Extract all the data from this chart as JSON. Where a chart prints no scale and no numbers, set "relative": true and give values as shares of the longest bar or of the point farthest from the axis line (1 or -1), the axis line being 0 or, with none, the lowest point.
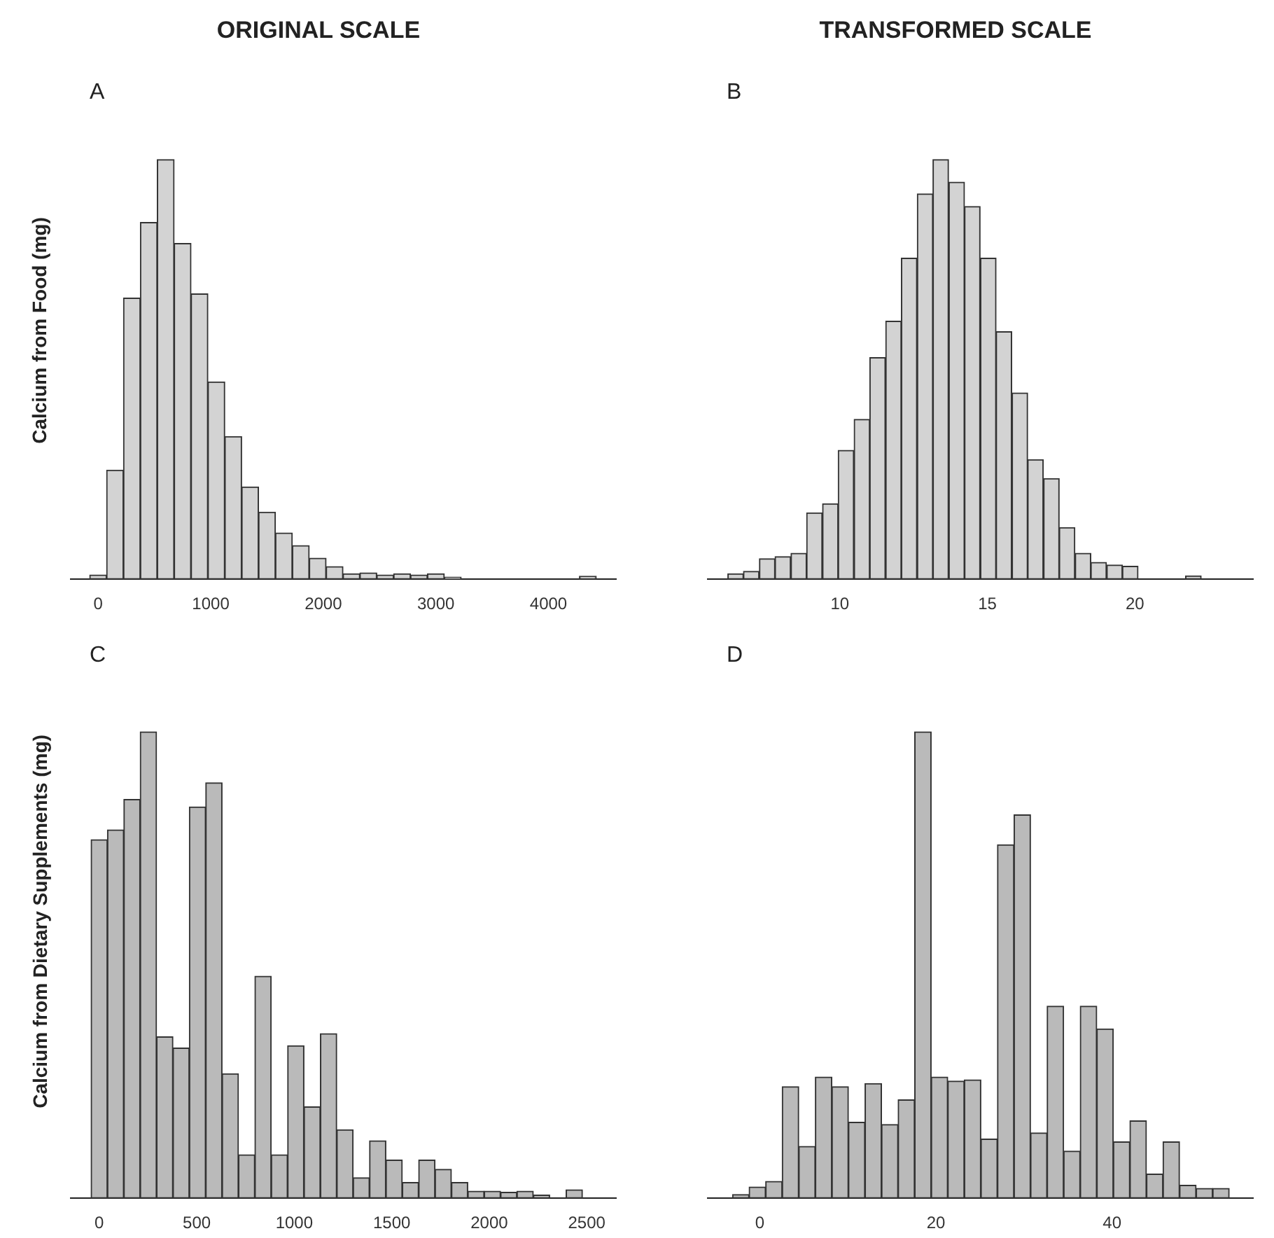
{
  "chart_data": [
    {
      "type": "bar",
      "title": "ORIGINAL SCALE",
      "ylabel": "Calcium from Food (mg)",
      "annotations": [
        "A"
      ],
      "relative": true,
      "color": "#d3d3d3",
      "x": [
        0,
        150,
        300,
        450,
        600,
        750,
        900,
        1050,
        1200,
        1350,
        1500,
        1650,
        1800,
        1950,
        2100,
        2250,
        2400,
        2550,
        2700,
        2850,
        3000,
        3150,
        3300,
        3450,
        3600,
        3750,
        3900,
        4050,
        4200,
        4350
      ],
      "values": [
        0.01,
        0.26,
        0.67,
        0.85,
        1,
        0.8,
        0.68,
        0.47,
        0.34,
        0.22,
        0.16,
        0.11,
        0.08,
        0.05,
        0.03,
        0.013,
        0.015,
        0.01,
        0.013,
        0.01,
        0.013,
        0.005,
        0,
        0,
        0,
        0,
        0,
        0,
        0,
        0.007
      ],
      "xlim": [
        -250,
        4600
      ],
      "xticks": [
        0,
        1000,
        2000,
        3000,
        4000
      ],
      "grid": false
    },
    {
      "type": "bar",
      "title": "TRANSFORMED SCALE",
      "annotations": [
        "B"
      ],
      "relative": true,
      "color": "#d3d3d3",
      "x": [
        6.47,
        7.0,
        7.54,
        8.07,
        8.61,
        9.14,
        9.68,
        10.21,
        10.75,
        11.28,
        11.82,
        12.35,
        12.89,
        13.42,
        13.96,
        14.49,
        15.03,
        15.56,
        16.1,
        16.63,
        17.17,
        17.7,
        18.24,
        18.77,
        19.31,
        19.84,
        20.38,
        20.91,
        21.45,
        21.98
      ],
      "values": [
        0.013,
        0.019,
        0.049,
        0.054,
        0.062,
        0.158,
        0.18,
        0.307,
        0.381,
        0.528,
        0.615,
        0.765,
        0.918,
        1,
        0.946,
        0.888,
        0.765,
        0.59,
        0.444,
        0.285,
        0.24,
        0.123,
        0.062,
        0.04,
        0.034,
        0.031,
        0,
        0,
        0,
        0.008
      ],
      "xlim": [
        5.5,
        24
      ],
      "xticks": [
        10,
        15,
        20
      ],
      "grid": false
    },
    {
      "type": "bar",
      "ylabel": "Calcium from Dietary Supplements (mg)",
      "annotations": [
        "C"
      ],
      "relative": true,
      "color": "#bababa",
      "x": [
        0,
        84,
        168,
        252,
        336,
        420,
        504,
        588,
        672,
        756,
        840,
        924,
        1008,
        1092,
        1176,
        1260,
        1344,
        1428,
        1512,
        1596,
        1680,
        1764,
        1848,
        1932,
        2016,
        2100,
        2184,
        2268,
        2352,
        2436
      ],
      "values": [
        0.769,
        0.79,
        0.855,
        1,
        0.346,
        0.322,
        0.839,
        0.891,
        0.267,
        0.093,
        0.476,
        0.093,
        0.327,
        0.196,
        0.353,
        0.147,
        0.044,
        0.123,
        0.082,
        0.034,
        0.082,
        0.062,
        0.034,
        0.015,
        0.015,
        0.013,
        0.015,
        0.007,
        0,
        0.018
      ],
      "xlim": [
        -150,
        2650
      ],
      "xticks": [
        0,
        500,
        1000,
        1500,
        2000,
        2500
      ],
      "grid": false
    },
    {
      "type": "bar",
      "annotations": [
        "D"
      ],
      "relative": true,
      "color": "#bababa",
      "x": [
        -2.16,
        -0.28,
        1.6,
        3.48,
        5.36,
        7.24,
        9.12,
        11,
        12.88,
        14.76,
        16.64,
        18.52,
        20.4,
        22.28,
        24.16,
        26.04,
        27.92,
        29.8,
        31.68,
        33.56,
        35.44,
        37.32,
        39.2,
        41.08,
        42.96,
        44.84,
        46.72,
        48.6,
        50.48,
        52.36
      ],
      "values": [
        0.008,
        0.024,
        0.036,
        0.239,
        0.111,
        0.26,
        0.239,
        0.163,
        0.246,
        0.158,
        0.211,
        1,
        0.26,
        0.251,
        0.254,
        0.127,
        0.758,
        0.822,
        0.14,
        0.412,
        0.101,
        0.412,
        0.363,
        0.121,
        0.166,
        0.052,
        0.121,
        0.028,
        0.021,
        0.021
      ],
      "xlim": [
        -6,
        56
      ],
      "xticks": [
        0,
        20,
        40
      ],
      "grid": false
    }
  ]
}
